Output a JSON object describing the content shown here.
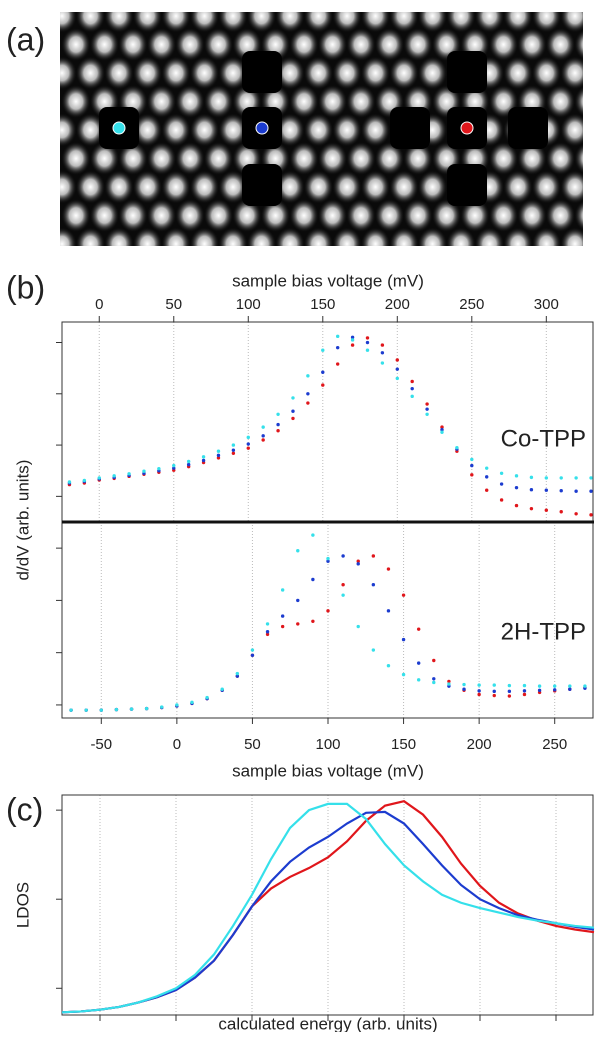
{
  "panel_labels": [
    "(a)",
    "(b)",
    "(c)"
  ],
  "chart_data": [
    {
      "type": "scatter",
      "xlabel": "sample bias voltage (mV)",
      "ylabel": "d/dV (arb. units)",
      "annotation": "Co-TPP",
      "xlim": [
        -25,
        332
      ],
      "xticks": [
        0,
        50,
        100,
        150,
        200,
        250,
        300
      ],
      "ylim": [
        0.5,
        4.4
      ],
      "yticks": [
        1,
        2,
        3,
        4
      ],
      "grid": true,
      "tick_labels": true,
      "x": [
        -20,
        -10,
        0,
        10,
        20,
        30,
        40,
        50,
        60,
        70,
        80,
        90,
        100,
        110,
        120,
        130,
        140,
        150,
        160,
        170,
        180,
        190,
        200,
        210,
        220,
        230,
        240,
        250,
        260,
        270,
        280,
        290,
        300,
        310,
        320,
        330
      ],
      "series": [
        {
          "color": "#e0161b",
          "values": [
            1.23,
            1.26,
            1.32,
            1.35,
            1.39,
            1.43,
            1.47,
            1.51,
            1.58,
            1.66,
            1.75,
            1.84,
            1.94,
            2.1,
            2.28,
            2.52,
            2.82,
            3.17,
            3.58,
            3.95,
            4.09,
            3.95,
            3.66,
            3.24,
            2.8,
            2.35,
            1.88,
            1.42,
            1.12,
            0.93,
            0.82,
            0.76,
            0.73,
            0.7,
            0.66,
            0.64
          ]
        },
        {
          "color": "#1c3ccf",
          "values": [
            1.26,
            1.29,
            1.34,
            1.37,
            1.41,
            1.45,
            1.5,
            1.55,
            1.62,
            1.7,
            1.8,
            1.9,
            2.02,
            2.18,
            2.4,
            2.66,
            3.0,
            3.42,
            3.9,
            4.1,
            4.0,
            3.8,
            3.48,
            3.1,
            2.7,
            2.3,
            1.92,
            1.6,
            1.38,
            1.24,
            1.17,
            1.13,
            1.12,
            1.11,
            1.1,
            1.1
          ]
        },
        {
          "color": "#35e0ea",
          "values": [
            1.28,
            1.31,
            1.36,
            1.4,
            1.44,
            1.49,
            1.54,
            1.6,
            1.68,
            1.77,
            1.88,
            2.0,
            2.15,
            2.35,
            2.6,
            2.92,
            3.35,
            3.85,
            4.12,
            4.05,
            3.85,
            3.6,
            3.3,
            2.95,
            2.6,
            2.25,
            1.95,
            1.72,
            1.55,
            1.45,
            1.4,
            1.37,
            1.36,
            1.36,
            1.36,
            1.36
          ]
        }
      ]
    },
    {
      "type": "scatter",
      "xlabel": "sample bias voltage (mV)",
      "annotation": "2H-TPP",
      "xlim": [
        -76,
        276
      ],
      "xticks": [
        -50,
        0,
        50,
        100,
        150,
        200,
        250
      ],
      "ylim": [
        0.75,
        4.5
      ],
      "yticks": [
        1,
        2,
        3,
        4
      ],
      "grid": true,
      "tick_labels": true,
      "x": [
        -70,
        -60,
        -50,
        -40,
        -30,
        -20,
        -10,
        0,
        10,
        20,
        30,
        40,
        50,
        60,
        70,
        80,
        90,
        100,
        110,
        120,
        130,
        140,
        150,
        160,
        170,
        180,
        190,
        200,
        210,
        220,
        230,
        240,
        250,
        260,
        270
      ],
      "series": [
        {
          "color": "#e0161b",
          "values": [
            0.9,
            0.9,
            0.9,
            0.91,
            0.92,
            0.93,
            0.95,
            0.98,
            1.03,
            1.12,
            1.28,
            1.55,
            1.95,
            2.35,
            2.5,
            2.55,
            2.6,
            2.8,
            3.3,
            3.75,
            3.85,
            3.6,
            3.1,
            2.45,
            1.85,
            1.45,
            1.28,
            1.2,
            1.18,
            1.17,
            1.2,
            1.24,
            1.27,
            1.3,
            1.33
          ]
        },
        {
          "color": "#1c3ccf",
          "values": [
            0.9,
            0.9,
            0.9,
            0.91,
            0.92,
            0.93,
            0.95,
            0.98,
            1.03,
            1.12,
            1.28,
            1.55,
            1.95,
            2.4,
            2.7,
            3.0,
            3.4,
            3.75,
            3.85,
            3.7,
            3.3,
            2.8,
            2.25,
            1.8,
            1.5,
            1.36,
            1.3,
            1.27,
            1.26,
            1.26,
            1.27,
            1.28,
            1.29,
            1.3,
            1.32
          ]
        },
        {
          "color": "#35e0ea",
          "values": [
            0.9,
            0.9,
            0.9,
            0.91,
            0.92,
            0.93,
            0.96,
            1.0,
            1.05,
            1.14,
            1.3,
            1.6,
            2.05,
            2.55,
            3.2,
            3.95,
            4.25,
            3.8,
            3.1,
            2.5,
            2.05,
            1.75,
            1.58,
            1.48,
            1.43,
            1.4,
            1.39,
            1.38,
            1.38,
            1.37,
            1.37,
            1.36,
            1.36,
            1.36,
            1.36
          ]
        }
      ]
    },
    {
      "type": "line",
      "xlabel": "calculated energy (arb. units)",
      "ylabel": "LDOS",
      "xlim": [
        0,
        7
      ],
      "xticks": [
        0.5,
        1.5,
        2.5,
        3.5,
        4.5,
        5.5,
        6.5
      ],
      "ylim": [
        0.7,
        3.17
      ],
      "yticks": [
        1,
        2,
        3
      ],
      "grid": true,
      "tick_labels": false,
      "x": [
        0,
        0.25,
        0.5,
        0.75,
        1,
        1.25,
        1.5,
        1.75,
        2,
        2.25,
        2.5,
        2.75,
        3,
        3.25,
        3.5,
        3.75,
        4,
        4.25,
        4.5,
        4.75,
        5,
        5.25,
        5.5,
        5.75,
        6,
        6.25,
        6.5,
        6.75,
        7
      ],
      "series": [
        {
          "color": "#e0161b",
          "values": [
            0.73,
            0.74,
            0.76,
            0.79,
            0.84,
            0.9,
            0.98,
            1.12,
            1.31,
            1.6,
            1.92,
            2.12,
            2.25,
            2.35,
            2.47,
            2.65,
            2.88,
            3.05,
            3.1,
            2.95,
            2.7,
            2.4,
            2.15,
            1.96,
            1.84,
            1.76,
            1.7,
            1.66,
            1.63
          ]
        },
        {
          "color": "#1c3ccf",
          "values": [
            0.73,
            0.74,
            0.76,
            0.79,
            0.84,
            0.9,
            0.98,
            1.12,
            1.31,
            1.6,
            1.92,
            2.2,
            2.42,
            2.58,
            2.7,
            2.85,
            2.97,
            2.98,
            2.85,
            2.62,
            2.38,
            2.16,
            2.0,
            1.9,
            1.82,
            1.77,
            1.73,
            1.69,
            1.66
          ]
        },
        {
          "color": "#35e0ea",
          "values": [
            0.73,
            0.74,
            0.76,
            0.79,
            0.84,
            0.91,
            1.0,
            1.15,
            1.38,
            1.7,
            2.05,
            2.45,
            2.8,
            3.0,
            3.07,
            3.07,
            2.9,
            2.62,
            2.38,
            2.2,
            2.05,
            1.96,
            1.9,
            1.85,
            1.8,
            1.76,
            1.73,
            1.7,
            1.68
          ]
        }
      ]
    }
  ]
}
